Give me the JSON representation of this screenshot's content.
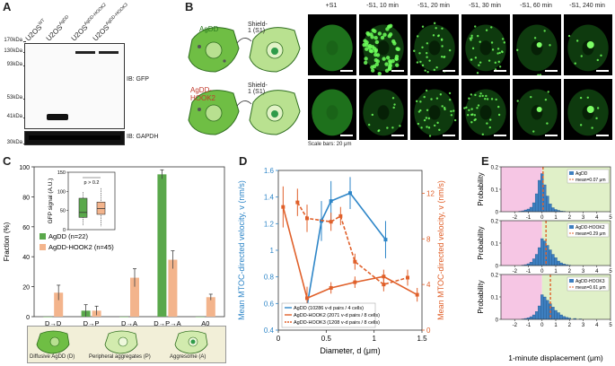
{
  "panels": {
    "A": {
      "label": "A",
      "lanes": [
        "U2OS",
        "U2OS",
        "U2OS",
        "U2OS"
      ],
      "lane_superscripts": [
        "WT",
        "AgDD",
        "AgDD-HOOK2",
        "AgDD-HOOK3"
      ],
      "mw_markers": [
        "170kDa",
        "130kDa",
        "93kDa",
        "53kDa",
        "41kDa",
        "30kDa"
      ],
      "blot_labels": [
        "IB: GFP",
        "IB: GAPDH"
      ]
    },
    "B": {
      "label": "B",
      "constructs": [
        "AgDD",
        "AgDD-HOOK2"
      ],
      "treatment_label": "Shield-1 (S1)",
      "timepoints": [
        "+S1",
        "-S1, 10 min",
        "-S1, 20 min",
        "-S1, 30 min",
        "-S1, 60 min",
        "-S1, 240 min"
      ],
      "scale_label": "Scale bars: 20 μm"
    },
    "C": {
      "label": "C",
      "legend_categories": [
        "Diffusive AgDD (D)",
        "Peripheral aggregates (P)",
        "Aggresome (A)"
      ]
    },
    "D": {
      "label": "D"
    },
    "E": {
      "label": "E"
    }
  },
  "chart_data": [
    {
      "panel": "C",
      "type": "bar",
      "ylabel": "Fraction (%)",
      "ylim": [
        0,
        100
      ],
      "yticks": [
        0,
        20,
        40,
        60,
        80,
        100
      ],
      "categories": [
        "D→D",
        "D→P",
        "D→A",
        "D→P→A",
        "A0"
      ],
      "series": [
        {
          "name": "AgDD (n=22)",
          "color": "#5aa84b",
          "values": [
            0,
            4,
            0,
            95,
            0
          ],
          "errors": [
            0,
            4,
            0,
            3,
            0
          ]
        },
        {
          "name": "AgDD-HOOK2 (n=45)",
          "color": "#f3b48c",
          "values": [
            16,
            4,
            26,
            38,
            13
          ],
          "errors": [
            5,
            3,
            6,
            6,
            2
          ]
        }
      ],
      "inset": {
        "ylabel": "GFP signal (A.U.)",
        "ylim": [
          0,
          150
        ],
        "yticks": [
          0,
          50,
          100,
          150
        ],
        "annotation": "p > 0.2",
        "boxes": [
          {
            "color": "#5aa84b",
            "q1": 32,
            "median": 45,
            "q3": 82,
            "whisker_low": 10,
            "whisker_high": 98
          },
          {
            "color": "#f3b48c",
            "q1": 40,
            "median": 55,
            "q3": 72,
            "whisker_low": 8,
            "whisker_high": 108
          }
        ]
      }
    },
    {
      "panel": "D",
      "type": "line",
      "xlabel": "Diameter, d (μm)",
      "ylabel": "Mean MTOC-directed velocity, v (nm/s)",
      "y2label": "Mean MTOC-directed velocity, v (nm/s)",
      "xlim": [
        0,
        1.5
      ],
      "xticks": [
        0,
        0.5,
        1,
        1.5
      ],
      "ylim": [
        0.4,
        1.6
      ],
      "yticks": [
        0.4,
        0.6,
        0.8,
        1,
        1.2,
        1.4,
        1.6
      ],
      "y2lim": [
        0,
        14
      ],
      "y2ticks": [
        0,
        4,
        8,
        12
      ],
      "series": [
        {
          "name": "AgDD (10286 v-d pairs / 4 cells)",
          "axis": "left",
          "color": "#2e86c8",
          "style": "solid",
          "x": [
            0.3,
            0.45,
            0.55,
            0.75,
            1.12
          ],
          "y": [
            0.58,
            1.22,
            1.37,
            1.43,
            1.08
          ],
          "errors": [
            0.1,
            0.15,
            0.15,
            0.12,
            0.14
          ]
        },
        {
          "name": "AgDD-HOOK2 (2071 v-d pairs / 8 cells)",
          "axis": "right",
          "color": "#e0602a",
          "style": "solid",
          "x": [
            0.05,
            0.3,
            0.55,
            0.8,
            1.1,
            1.45
          ],
          "y": [
            10.8,
            2.8,
            3.7,
            4.2,
            4.7,
            3.1
          ],
          "errors": [
            1.8,
            1.0,
            0.5,
            0.5,
            0.6,
            0.6
          ]
        },
        {
          "name": "AgDD-HOOK3 (1208 v-d pairs / 8 cells)",
          "axis": "right",
          "color": "#e0602a",
          "style": "dashed",
          "x": [
            0.2,
            0.3,
            0.55,
            0.65,
            0.8,
            1.1,
            1.35
          ],
          "y": [
            11.2,
            9.8,
            9.5,
            10.0,
            6.0,
            4.0,
            4.6
          ],
          "errors": [
            1.2,
            1.2,
            0.8,
            0.8,
            0.7,
            0.6,
            0.7
          ]
        }
      ]
    },
    {
      "panel": "E",
      "type": "bar",
      "xlabel": "1-minute displacement (μm)",
      "ylabel": "Probability",
      "xlim": [
        -3,
        5
      ],
      "xticks": [
        -2,
        -1,
        0,
        1,
        2,
        3,
        4,
        5
      ],
      "ylim": [
        0,
        0.2
      ],
      "yticks": [
        0,
        0.1,
        0.2
      ],
      "hists": [
        {
          "name": "AgDD",
          "mean_label": "mean=0.07 μm",
          "mean": 0.07,
          "centers": [
            -1.6,
            -1.4,
            -1.2,
            -1.0,
            -0.8,
            -0.6,
            -0.4,
            -0.2,
            0,
            0.2,
            0.4,
            0.6,
            0.8,
            1.0,
            1.2,
            1.4,
            1.6
          ],
          "values": [
            0.002,
            0.004,
            0.008,
            0.012,
            0.02,
            0.04,
            0.08,
            0.14,
            0.17,
            0.12,
            0.07,
            0.035,
            0.018,
            0.01,
            0.006,
            0.003,
            0.002
          ]
        },
        {
          "name": "AgDD-HOOK2",
          "mean_label": "mean=0.29 μm",
          "mean": 0.29,
          "centers": [
            -1.4,
            -1.2,
            -1.0,
            -0.8,
            -0.6,
            -0.4,
            -0.2,
            0,
            0.2,
            0.4,
            0.6,
            0.8,
            1.0,
            1.2,
            1.4,
            1.6,
            1.8,
            2.0
          ],
          "values": [
            0.002,
            0.004,
            0.008,
            0.015,
            0.03,
            0.05,
            0.08,
            0.12,
            0.11,
            0.09,
            0.07,
            0.05,
            0.035,
            0.02,
            0.012,
            0.007,
            0.004,
            0.002
          ]
        },
        {
          "name": "AgDD-HOOK3",
          "mean_label": "mean=0.61 μm",
          "mean": 0.61,
          "centers": [
            -1.4,
            -1.2,
            -1.0,
            -0.8,
            -0.6,
            -0.4,
            -0.2,
            0,
            0.2,
            0.4,
            0.6,
            0.8,
            1.0,
            1.2,
            1.4,
            1.6,
            1.8,
            2.0,
            2.4,
            2.8
          ],
          "values": [
            0.002,
            0.004,
            0.007,
            0.012,
            0.02,
            0.035,
            0.06,
            0.11,
            0.1,
            0.085,
            0.07,
            0.055,
            0.04,
            0.03,
            0.02,
            0.013,
            0.009,
            0.006,
            0.004,
            0.002
          ]
        }
      ]
    }
  ]
}
